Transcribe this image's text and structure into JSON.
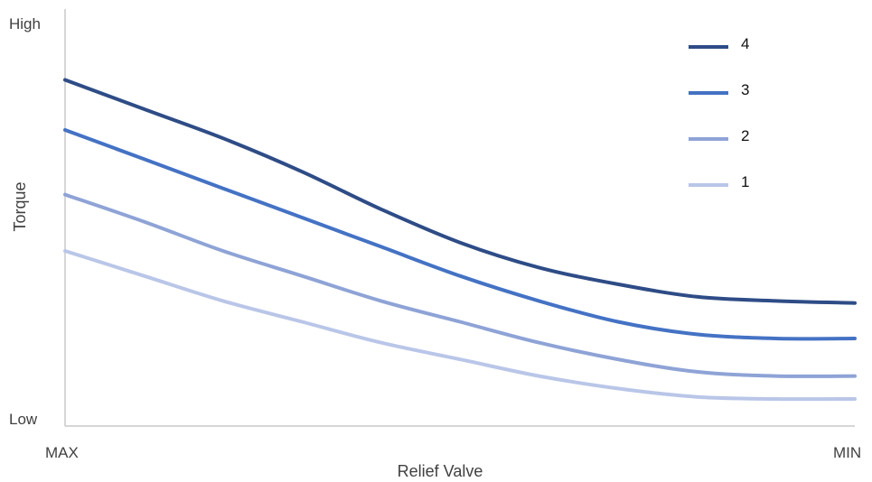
{
  "chart_data": {
    "type": "line",
    "title": "",
    "xlabel": "Relief Valve",
    "ylabel": "Torque",
    "x_tick_labels": [
      "MAX",
      "MIN"
    ],
    "y_tick_labels": [
      "Low",
      "High"
    ],
    "xlim": [
      0,
      1
    ],
    "ylim": [
      0,
      1
    ],
    "grid": false,
    "legend_position": "top-right",
    "x": [
      0,
      0.1,
      0.2,
      0.3,
      0.4,
      0.5,
      0.6,
      0.7,
      0.8,
      0.9,
      1.0
    ],
    "series": [
      {
        "name": "4",
        "color": "#2e4c86",
        "values": [
          0.83,
          0.76,
          0.69,
          0.61,
          0.52,
          0.44,
          0.38,
          0.34,
          0.31,
          0.3,
          0.295
        ]
      },
      {
        "name": "3",
        "color": "#4472c4",
        "values": [
          0.71,
          0.64,
          0.57,
          0.5,
          0.43,
          0.36,
          0.3,
          0.25,
          0.22,
          0.21,
          0.21
        ]
      },
      {
        "name": "2",
        "color": "#8ea3d6",
        "values": [
          0.555,
          0.49,
          0.42,
          0.36,
          0.3,
          0.25,
          0.2,
          0.16,
          0.13,
          0.12,
          0.12
        ]
      },
      {
        "name": "1",
        "color": "#b9c6e8",
        "values": [
          0.42,
          0.36,
          0.3,
          0.25,
          0.2,
          0.16,
          0.12,
          0.09,
          0.07,
          0.065,
          0.065
        ]
      }
    ]
  }
}
